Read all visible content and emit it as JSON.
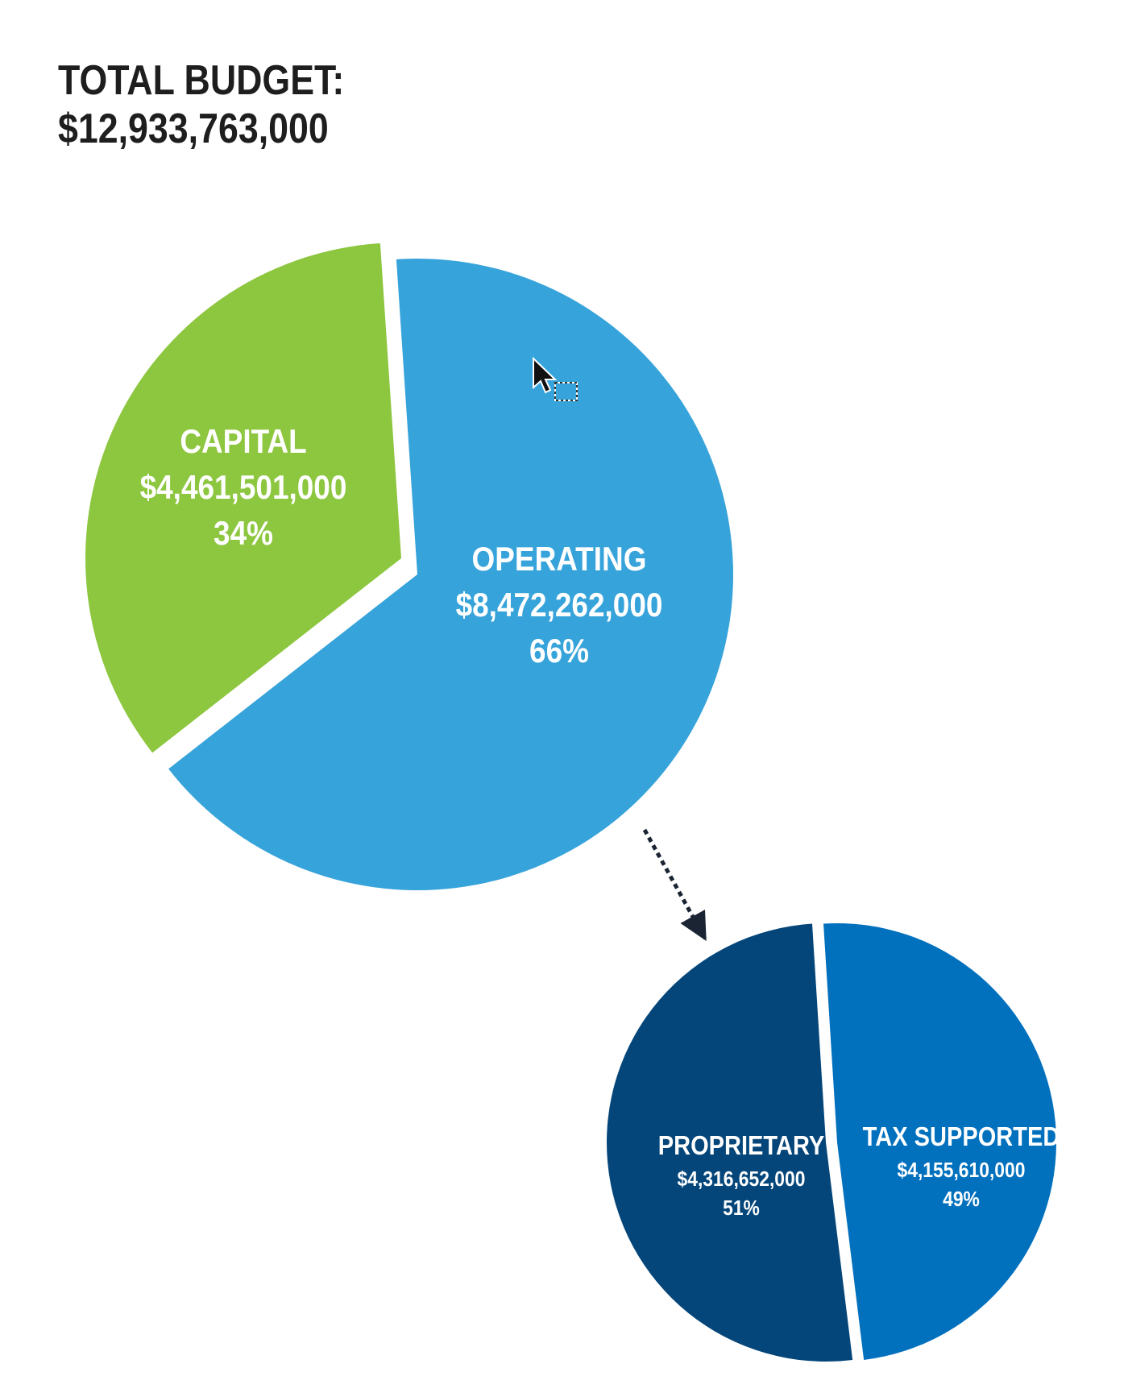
{
  "header": {
    "title_line1": "TOTAL BUDGET:",
    "title_line2": "$12,933,763,000"
  },
  "chart_data": [
    {
      "type": "pie",
      "slices": [
        {
          "label": "CAPITAL",
          "value": 4461501000,
          "value_label": "$4,461,501,000",
          "percent": 34,
          "percent_label": "34%",
          "color": "#8dc63f"
        },
        {
          "label": "OPERATING",
          "value": 8472262000,
          "value_label": "$8,472,262,000",
          "percent": 66,
          "percent_label": "66%",
          "color": "#36a3da"
        }
      ]
    },
    {
      "type": "pie",
      "slices": [
        {
          "label": "PROPRIETARY",
          "value": 4316652000,
          "value_label": "$4,316,652,000",
          "percent": 51,
          "percent_label": "51%",
          "color": "#05467a"
        },
        {
          "label": "TAX SUPPORTED",
          "value": 4155610000,
          "value_label": "$4,155,610,000",
          "percent": 49,
          "percent_label": "49%",
          "color": "#0170bd"
        }
      ]
    }
  ],
  "pointer": {
    "icon": "cursor-arrow-icon"
  }
}
